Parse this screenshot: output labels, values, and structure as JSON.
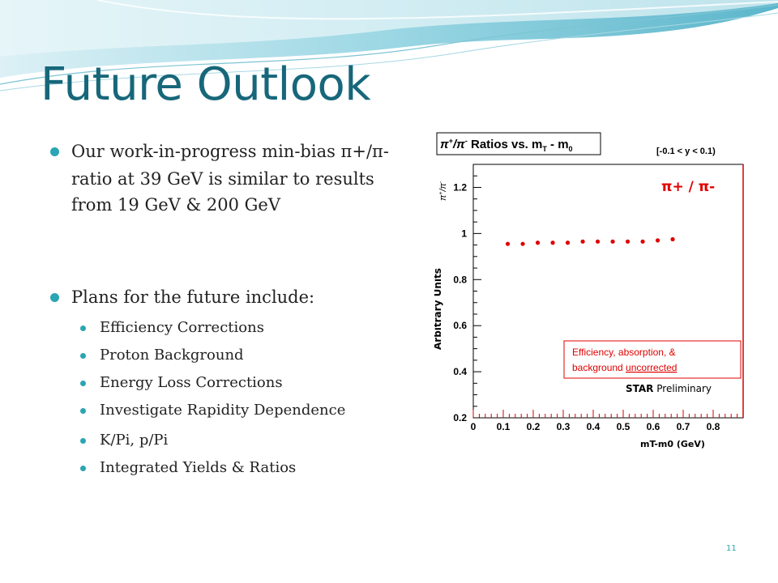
{
  "slide": {
    "title": "Future Outlook",
    "bullets": [
      {
        "lines": [
          "Our work-in-progress min-bias π+/π-",
          "ratio at 39 GeV is similar to results",
          "from 19 GeV & 200 GeV"
        ]
      },
      {
        "lines": [
          "Plans for the future include:"
        ]
      }
    ],
    "sub_items": [
      "Efficiency Corrections",
      "Proton Background",
      "Energy Loss Corrections",
      "Investigate Rapidity Dependence",
      "K/Pi, p/Pi",
      "Integrated Yields & Ratios"
    ],
    "page_number": "11"
  },
  "colors": {
    "title": "#17677a",
    "bullet": "#2aa5b3",
    "marker": "#dd0000"
  },
  "chart_data": {
    "type": "scatter",
    "title_prefix": "π",
    "title_sup": "+",
    "title_slash": "/π",
    "title_sup2": "-",
    "title_main": " Ratios vs. m",
    "title_sub": "T",
    "title_tail": " - m",
    "title_sub2": "0",
    "rapidity_label": "[-0.1 < y < 0.1)",
    "series_label": "π+ / π-",
    "y_axis_hist_prefix": "π",
    "y_axis_hist_sup": "+",
    "y_axis_hist_slash": "/π",
    "y_axis_hist_sup2": "-",
    "ylabel": "Arbitrary Units",
    "xlabel": "mT-m0   (GeV)",
    "xlim": [
      0,
      0.9
    ],
    "ylim": [
      0.2,
      1.3
    ],
    "x_ticks": [
      "0",
      "0.1",
      "0.2",
      "0.3",
      "0.4",
      "0.5",
      "0.6",
      "0.7",
      "0.8"
    ],
    "x_tick_values": [
      0,
      0.1,
      0.2,
      0.3,
      0.4,
      0.5,
      0.6,
      0.7,
      0.8
    ],
    "y_ticks": [
      "0.2",
      "0.4",
      "0.6",
      "0.8",
      "1",
      "1.2"
    ],
    "y_tick_values": [
      0.2,
      0.4,
      0.6,
      0.8,
      1.0,
      1.2
    ],
    "series": [
      {
        "name": "π+ / π-",
        "x": [
          0.115,
          0.165,
          0.215,
          0.265,
          0.315,
          0.365,
          0.415,
          0.465,
          0.515,
          0.565,
          0.615,
          0.665
        ],
        "y": [
          0.955,
          0.955,
          0.96,
          0.96,
          0.96,
          0.965,
          0.965,
          0.965,
          0.965,
          0.965,
          0.97,
          0.975
        ]
      }
    ],
    "note_line1": "Efficiency, absorption, &",
    "note_line2_prefix": "background ",
    "note_line2_underlined": "uncorrected",
    "preliminary_bold": "STAR",
    "preliminary_rest": " Preliminary"
  }
}
